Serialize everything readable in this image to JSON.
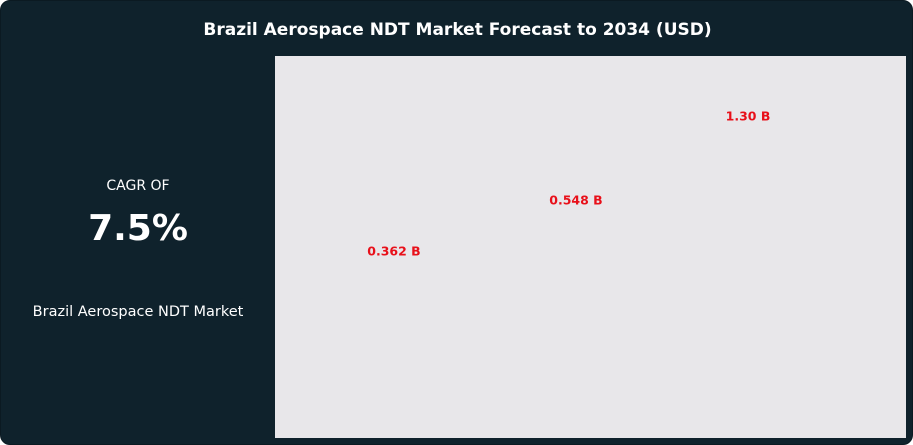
{
  "chart_data": {
    "type": "bar",
    "title": "Brazil Aerospace NDT Market Forecast to 2034 (USD)",
    "categories": [
      null,
      null,
      null
    ],
    "values": [
      0.362,
      0.548,
      1.3
    ],
    "value_labels": [
      "0.362 B",
      "0.548 B",
      "1.30 B"
    ]
  },
  "summary": {
    "caption": "CAGR OF",
    "cagr": "7.5%",
    "market": "Brazil Aerospace NDT Market"
  }
}
